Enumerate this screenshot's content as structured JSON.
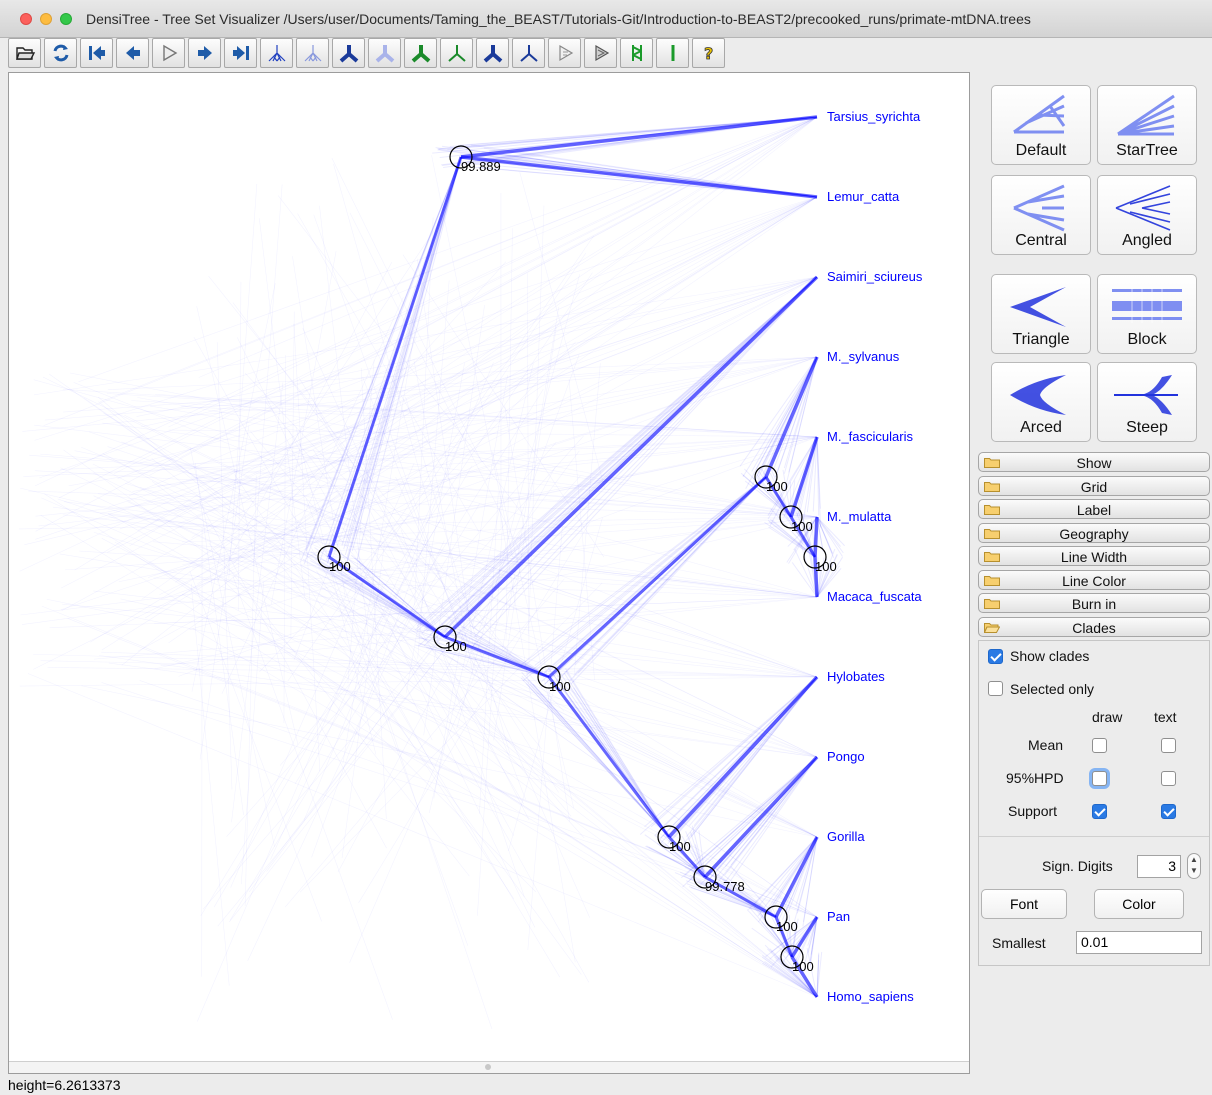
{
  "window": {
    "title": "DensiTree - Tree Set Visualizer /Users/user/Documents/Taming_the_BEAST/Tutorials-Git/Introduction-to-BEAST2/precooked_runs/primate-mtDNA.trees"
  },
  "toolbar": {
    "buttons": [
      {
        "icon": "open-file-icon"
      },
      {
        "icon": "refresh-icon"
      },
      {
        "icon": "first-tree-icon"
      },
      {
        "icon": "previous-tree-icon"
      },
      {
        "icon": "play-icon"
      },
      {
        "icon": "next-tree-icon"
      },
      {
        "icon": "last-tree-icon"
      },
      {
        "icon": "tree-dark-icon"
      },
      {
        "icon": "tree-light-icon"
      },
      {
        "icon": "tree-bold-dark-icon"
      },
      {
        "icon": "tree-bold-light-icon"
      },
      {
        "icon": "tree-green-bold-icon"
      },
      {
        "icon": "tree-green-thin-icon"
      },
      {
        "icon": "tree-blue-bold-icon"
      },
      {
        "icon": "tree-blue-thin-icon"
      },
      {
        "icon": "animate-gray-icon"
      },
      {
        "icon": "animate-dark-icon"
      },
      {
        "icon": "geo-lines-icon"
      },
      {
        "icon": "single-line-icon"
      },
      {
        "icon": "help-icon"
      }
    ]
  },
  "taxa": [
    "Tarsius_syrichta",
    "Lemur_catta",
    "Saimiri_sciureus",
    "M._sylvanus",
    "M._fascicularis",
    "M._mulatta",
    "Macaca_fuscata",
    "Hylobates",
    "Pongo",
    "Gorilla",
    "Pan",
    "Homo_sapiens"
  ],
  "clade_support": {
    "tarsius_lemur": "99.889",
    "root": "100",
    "anthropoid": "100",
    "catarrhine": "100",
    "macaca": "100",
    "macaca_inner": "100",
    "macaca_innermost": "100",
    "hominoid": "100",
    "great_apes": "99.778",
    "african_apes": "100",
    "pan_homo": "100"
  },
  "status": {
    "height": "height=6.2613373"
  },
  "layouts": {
    "default": "Default",
    "startree": "StarTree",
    "central": "Central",
    "angled": "Angled",
    "triangle": "Triangle",
    "block": "Block",
    "arced": "Arced",
    "steep": "Steep"
  },
  "sections": {
    "show": "Show",
    "grid": "Grid",
    "label": "Label",
    "geography": "Geography",
    "line_width": "Line Width",
    "line_color": "Line Color",
    "burn_in": "Burn in",
    "clades": "Clades"
  },
  "clades_panel": {
    "show_clades": "Show clades",
    "show_clades_checked": true,
    "selected_only": "Selected only",
    "selected_only_checked": false,
    "col_draw": "draw",
    "col_text": "text",
    "mean": "Mean",
    "hpd": "95%HPD",
    "support": "Support",
    "sign_digits_label": "Sign. Digits",
    "sign_digits_value": "3",
    "font_button": "Font",
    "color_button": "Color",
    "smallest_label": "Smallest",
    "smallest_value": "0.01"
  },
  "colors": {
    "tree": "#0000ff",
    "checkbox_on": "#2a7ae4"
  }
}
